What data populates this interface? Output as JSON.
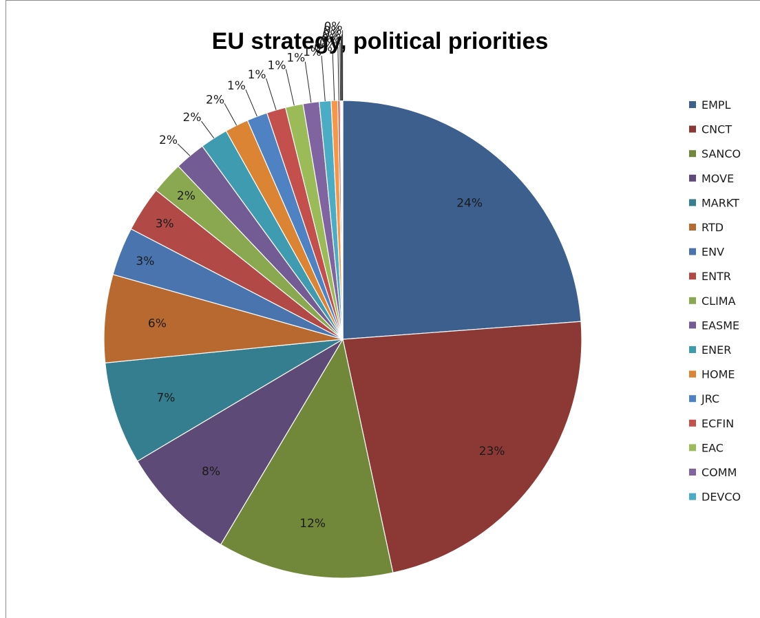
{
  "chart_data": {
    "type": "pie",
    "title": "EU strategy, political priorities",
    "legend_position": "right",
    "slices": [
      {
        "name": "EMPL",
        "value": 24.0,
        "label": "24%",
        "color": "#3C5F8E"
      },
      {
        "name": "CNCT",
        "value": 23.0,
        "label": "23%",
        "color": "#8C3835"
      },
      {
        "name": "SANCO",
        "value": 12.0,
        "label": "12%",
        "color": "#71883A"
      },
      {
        "name": "MOVE",
        "value": 8.0,
        "label": "8%",
        "color": "#5E4A76"
      },
      {
        "name": "MARKT",
        "value": 7.0,
        "label": "7%",
        "color": "#357E8F"
      },
      {
        "name": "RTD",
        "value": 6.0,
        "label": "6%",
        "color": "#B8692F"
      },
      {
        "name": "ENV",
        "value": 3.3,
        "label": "3%",
        "color": "#4A74AE"
      },
      {
        "name": "ENTR",
        "value": 3.1,
        "label": "3%",
        "color": "#B14A46"
      },
      {
        "name": "CLIMA",
        "value": 2.2,
        "label": "2%",
        "color": "#8AA84F"
      },
      {
        "name": "EASME",
        "value": 2.1,
        "label": "2%",
        "color": "#735C94"
      },
      {
        "name": "ENER",
        "value": 1.9,
        "label": "2%",
        "color": "#3E9BB0"
      },
      {
        "name": "HOME",
        "value": 1.6,
        "label": "2%",
        "color": "#DB8434"
      },
      {
        "name": "JRC",
        "value": 1.4,
        "label": "1%",
        "color": "#4F82C2"
      },
      {
        "name": "ECFIN",
        "value": 1.3,
        "label": "1%",
        "color": "#C4504D"
      },
      {
        "name": "EAC",
        "value": 1.2,
        "label": "1%",
        "color": "#9BBB59"
      },
      {
        "name": "COMM",
        "value": 1.1,
        "label": "1%",
        "color": "#8064A2"
      },
      {
        "name": "DEVCO",
        "value": 0.8,
        "label": "1%",
        "color": "#4BACC6"
      },
      {
        "value": 0.45,
        "label": "0%",
        "color": "#F79646"
      },
      {
        "value": 0.15,
        "label": "0%",
        "color": "#C0504D"
      },
      {
        "value": 0.07,
        "label": "0%",
        "color": "#4F81BD"
      },
      {
        "value": 0.05,
        "label": "0%",
        "color": "#9BBB59"
      },
      {
        "value": 0.04,
        "label": "0%",
        "color": "#8064A2"
      },
      {
        "value": 0.03,
        "label": "0%",
        "color": "#4BACC6"
      }
    ]
  }
}
